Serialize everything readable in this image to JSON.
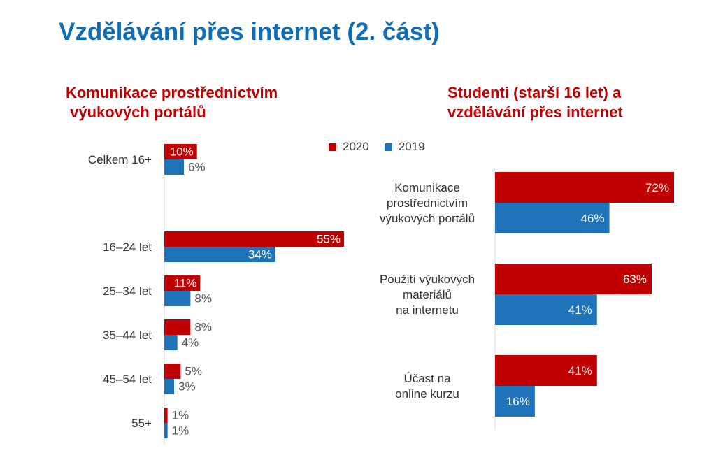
{
  "page": {
    "title": "Vzdělávání přes internet (2. část)"
  },
  "legend": [
    {
      "label": "2020",
      "color": "#c00000"
    },
    {
      "label": "2019",
      "color": "#1f73b8"
    }
  ],
  "chart_data": [
    {
      "type": "bar",
      "orientation": "horizontal",
      "title": "Komunikace prostřednictvím\n výukových portálů",
      "categories": [
        "Celkem 16+",
        "16–24 let",
        "25–34 let",
        "35–44 let",
        "45–54 let",
        "55+"
      ],
      "series": [
        {
          "name": "2020",
          "color": "#c00000",
          "values": [
            10,
            55,
            11,
            8,
            5,
            1
          ]
        },
        {
          "name": "2019",
          "color": "#1f73b8",
          "values": [
            6,
            34,
            8,
            4,
            3,
            1
          ]
        }
      ],
      "value_suffix": "%",
      "xlim": [
        0,
        55
      ],
      "grid": false
    },
    {
      "type": "bar",
      "orientation": "horizontal",
      "title": "Studenti (starší 16 let) a\nvzdělávání přes internet",
      "categories": [
        "Komunikace\nprostřednictvím\nvýukových portálů",
        "Použití výukových\nmateriálů\nna internetu",
        "Účast na\nonline kurzu"
      ],
      "series": [
        {
          "name": "2020",
          "color": "#c00000",
          "values": [
            72,
            63,
            41
          ]
        },
        {
          "name": "2019",
          "color": "#1f73b8",
          "values": [
            46,
            41,
            16
          ]
        }
      ],
      "value_suffix": "%",
      "xlim": [
        0,
        72
      ],
      "grid": false
    }
  ]
}
